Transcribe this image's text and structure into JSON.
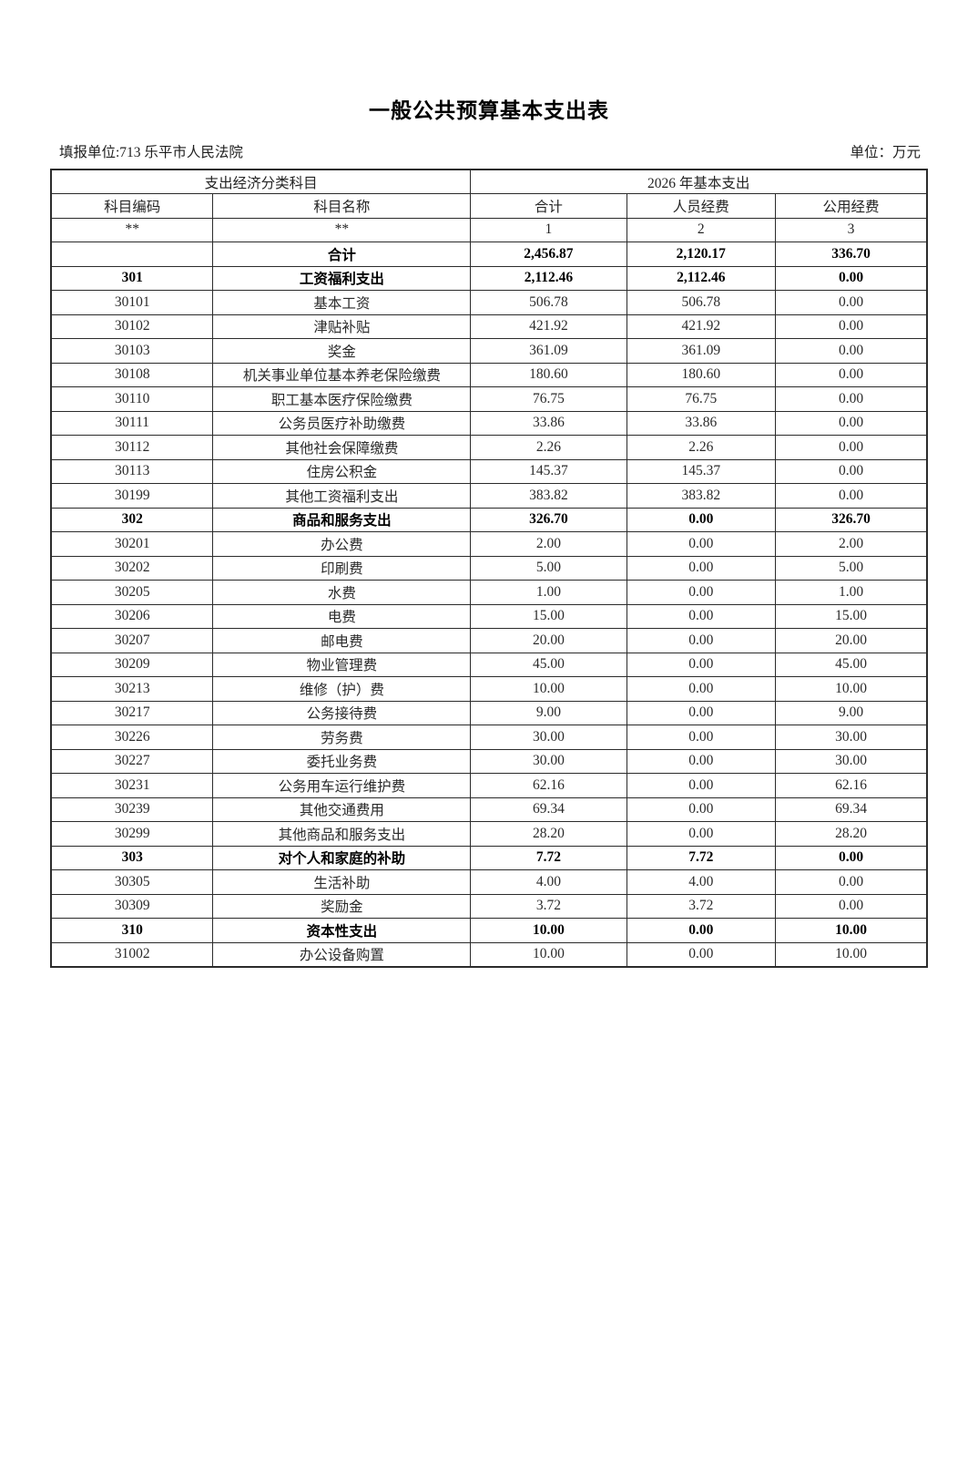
{
  "page": {
    "title": "一般公共预算基本支出表",
    "reporting_unit": "填报单位:713 乐平市人民法院",
    "unit": "单位：万元"
  },
  "table": {
    "header": {
      "group_left": "支出经济分类科目",
      "group_right": "2026 年基本支出",
      "columns": [
        "科目编码",
        "科目名称",
        "合计",
        "人员经费",
        "公用经费"
      ],
      "index_row": [
        "**",
        "**",
        "1",
        "2",
        "3"
      ]
    },
    "rows": [
      {
        "code": "",
        "name": "合计",
        "total": "2,456.87",
        "personnel": "2,120.17",
        "public": "336.70",
        "bold": true
      },
      {
        "code": "301",
        "name": "工资福利支出",
        "total": "2,112.46",
        "personnel": "2,112.46",
        "public": "0.00",
        "bold": true
      },
      {
        "code": "30101",
        "name": "基本工资",
        "total": "506.78",
        "personnel": "506.78",
        "public": "0.00",
        "bold": false
      },
      {
        "code": "30102",
        "name": "津贴补贴",
        "total": "421.92",
        "personnel": "421.92",
        "public": "0.00",
        "bold": false
      },
      {
        "code": "30103",
        "name": "奖金",
        "total": "361.09",
        "personnel": "361.09",
        "public": "0.00",
        "bold": false
      },
      {
        "code": "30108",
        "name": "机关事业单位基本养老保险缴费",
        "total": "180.60",
        "personnel": "180.60",
        "public": "0.00",
        "bold": false
      },
      {
        "code": "30110",
        "name": "职工基本医疗保险缴费",
        "total": "76.75",
        "personnel": "76.75",
        "public": "0.00",
        "bold": false
      },
      {
        "code": "30111",
        "name": "公务员医疗补助缴费",
        "total": "33.86",
        "personnel": "33.86",
        "public": "0.00",
        "bold": false
      },
      {
        "code": "30112",
        "name": "其他社会保障缴费",
        "total": "2.26",
        "personnel": "2.26",
        "public": "0.00",
        "bold": false
      },
      {
        "code": "30113",
        "name": "住房公积金",
        "total": "145.37",
        "personnel": "145.37",
        "public": "0.00",
        "bold": false
      },
      {
        "code": "30199",
        "name": "其他工资福利支出",
        "total": "383.82",
        "personnel": "383.82",
        "public": "0.00",
        "bold": false
      },
      {
        "code": "302",
        "name": "商品和服务支出",
        "total": "326.70",
        "personnel": "0.00",
        "public": "326.70",
        "bold": true
      },
      {
        "code": "30201",
        "name": "办公费",
        "total": "2.00",
        "personnel": "0.00",
        "public": "2.00",
        "bold": false
      },
      {
        "code": "30202",
        "name": "印刷费",
        "total": "5.00",
        "personnel": "0.00",
        "public": "5.00",
        "bold": false
      },
      {
        "code": "30205",
        "name": "水费",
        "total": "1.00",
        "personnel": "0.00",
        "public": "1.00",
        "bold": false
      },
      {
        "code": "30206",
        "name": "电费",
        "total": "15.00",
        "personnel": "0.00",
        "public": "15.00",
        "bold": false
      },
      {
        "code": "30207",
        "name": "邮电费",
        "total": "20.00",
        "personnel": "0.00",
        "public": "20.00",
        "bold": false
      },
      {
        "code": "30209",
        "name": "物业管理费",
        "total": "45.00",
        "personnel": "0.00",
        "public": "45.00",
        "bold": false
      },
      {
        "code": "30213",
        "name": "维修（护）费",
        "total": "10.00",
        "personnel": "0.00",
        "public": "10.00",
        "bold": false
      },
      {
        "code": "30217",
        "name": "公务接待费",
        "total": "9.00",
        "personnel": "0.00",
        "public": "9.00",
        "bold": false
      },
      {
        "code": "30226",
        "name": "劳务费",
        "total": "30.00",
        "personnel": "0.00",
        "public": "30.00",
        "bold": false
      },
      {
        "code": "30227",
        "name": "委托业务费",
        "total": "30.00",
        "personnel": "0.00",
        "public": "30.00",
        "bold": false
      },
      {
        "code": "30231",
        "name": "公务用车运行维护费",
        "total": "62.16",
        "personnel": "0.00",
        "public": "62.16",
        "bold": false
      },
      {
        "code": "30239",
        "name": "其他交通费用",
        "total": "69.34",
        "personnel": "0.00",
        "public": "69.34",
        "bold": false
      },
      {
        "code": "30299",
        "name": "其他商品和服务支出",
        "total": "28.20",
        "personnel": "0.00",
        "public": "28.20",
        "bold": false
      },
      {
        "code": "303",
        "name": "对个人和家庭的补助",
        "total": "7.72",
        "personnel": "7.72",
        "public": "0.00",
        "bold": true
      },
      {
        "code": "30305",
        "name": "生活补助",
        "total": "4.00",
        "personnel": "4.00",
        "public": "0.00",
        "bold": false
      },
      {
        "code": "30309",
        "name": "奖励金",
        "total": "3.72",
        "personnel": "3.72",
        "public": "0.00",
        "bold": false
      },
      {
        "code": "310",
        "name": "资本性支出",
        "total": "10.00",
        "personnel": "0.00",
        "public": "10.00",
        "bold": true
      },
      {
        "code": "31002",
        "name": "办公设备购置",
        "total": "10.00",
        "personnel": "0.00",
        "public": "10.00",
        "bold": false
      }
    ]
  }
}
